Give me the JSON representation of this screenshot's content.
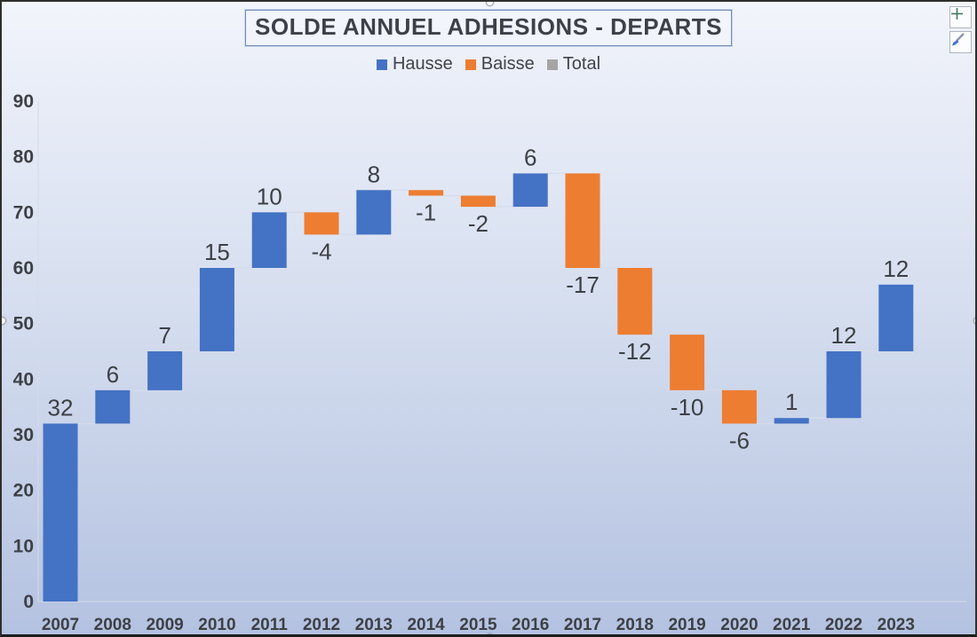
{
  "chart": {
    "title": "SOLDE ANNUEL ADHESIONS - DEPARTS"
  },
  "toolbar": {
    "chart_elements_icon": "plus-icon",
    "chart_styles_icon": "paintbrush-icon"
  },
  "chart_data": {
    "type": "bar",
    "subtype": "waterfall",
    "title": "SOLDE ANNUEL ADHESIONS - DEPARTS",
    "categories": [
      "2007",
      "2008",
      "2009",
      "2010",
      "2011",
      "2012",
      "2013",
      "2014",
      "2015",
      "2016",
      "2017",
      "2018",
      "2019",
      "2020",
      "2021",
      "2022",
      "2023"
    ],
    "values": [
      32,
      6,
      7,
      15,
      10,
      -4,
      8,
      -1,
      -2,
      6,
      -17,
      -12,
      -10,
      -6,
      1,
      12,
      12
    ],
    "cumulative": [
      32,
      38,
      45,
      60,
      70,
      66,
      74,
      73,
      71,
      77,
      60,
      48,
      38,
      32,
      33,
      45,
      57
    ],
    "legend": [
      {
        "label": "Hausse",
        "color": "#4472C4"
      },
      {
        "label": "Baisse",
        "color": "#ED7D31"
      },
      {
        "label": "Total",
        "color": "#A5A5A5"
      }
    ],
    "legend_position": "top",
    "grid": false,
    "xlabel": "",
    "ylabel": "",
    "ylim": [
      0,
      90
    ],
    "yticks": [
      0,
      10,
      20,
      30,
      40,
      50,
      60,
      70,
      80,
      90
    ],
    "colors": {
      "increase": "#4472C4",
      "decrease": "#ED7D31",
      "total": "#A5A5A5",
      "data_label": "#3d4045",
      "axis_text": "#3d4045",
      "connector": "#d5dbe9",
      "axis_line": "#d5dbe9"
    }
  }
}
